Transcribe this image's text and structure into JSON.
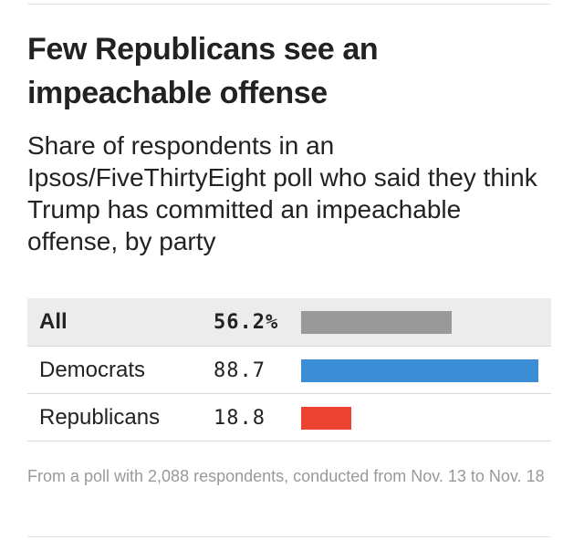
{
  "header": {
    "title": "Few Republicans see an impeachable offense",
    "subtitle": "Share of respondents in an Ipsos/FiveThirtyEight poll who said they think Trump has committed an impeachable offense, by party"
  },
  "footnote": "From a poll with 2,088 respondents, conducted from Nov. 13 to Nov. 18",
  "chart_data": {
    "type": "bar",
    "title": "Few Republicans see an impeachable offense",
    "subtitle": "Share of respondents in an Ipsos/FiveThirtyEight poll who said they think Trump has committed an impeachable offense, by party",
    "categories": [
      "All",
      "Democrats",
      "Republicans"
    ],
    "values": [
      56.2,
      88.7,
      18.8
    ],
    "value_labels": [
      "56.2%",
      "88.7",
      "18.8"
    ],
    "unit": "%",
    "ylim": [
      0,
      100
    ],
    "colors": [
      "#999999",
      "#3b8dd6",
      "#ec4430"
    ],
    "xlabel": "",
    "ylabel": "",
    "orientation": "horizontal"
  }
}
